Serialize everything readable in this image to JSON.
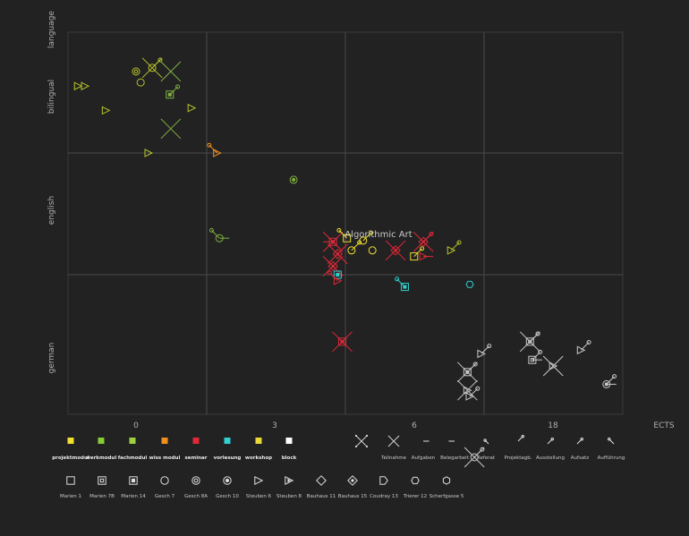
{
  "chart_data": {
    "type": "scatter",
    "title": "",
    "xlabel": "ECTS",
    "ylabel": "language",
    "x_ticks": [
      "0",
      "3",
      "6",
      "18"
    ],
    "y_categories": [
      "german",
      "english",
      "bilingual"
    ],
    "grid": true,
    "annotation": "Algorithmic Art",
    "colors": {
      "projektmodul": "#f0e030",
      "werkmodul": "#88cc33",
      "fachmodul": "#a0d040",
      "wiss_modul": "#f09020",
      "seminar": "#e02838",
      "vorlesung": "#30d0d0",
      "workshop": "#e8d838",
      "block": "#ffffff",
      "olive": "#b8c428",
      "green": "#7fb040",
      "grey": "#c8c8c8"
    },
    "points": [
      {
        "x": -1.25,
        "y": 2.55,
        "shape": "steuben6",
        "color": "olive"
      },
      {
        "x": -1.1,
        "y": 2.55,
        "shape": "steuben6",
        "color": "olive"
      },
      {
        "x": -0.65,
        "y": 2.35,
        "shape": "steuben6",
        "color": "olive"
      },
      {
        "x": 0.0,
        "y": 2.67,
        "shape": "gesch8a",
        "color": "olive"
      },
      {
        "x": 0.1,
        "y": 2.58,
        "shape": "gesch7",
        "color": "olive"
      },
      {
        "x": 0.35,
        "y": 2.7,
        "shape": "gesch7",
        "color": "olive",
        "marks": [
          "teilnahme",
          "ausstellung"
        ]
      },
      {
        "x": 0.75,
        "y": 2.67,
        "shape": "none",
        "color": "green",
        "marks": [
          "teilnahme"
        ]
      },
      {
        "x": 0.73,
        "y": 2.48,
        "shape": "marien14",
        "color": "green",
        "marks": [
          "aufsatz"
        ]
      },
      {
        "x": 1.2,
        "y": 2.37,
        "shape": "steuben6",
        "color": "olive"
      },
      {
        "x": 0.75,
        "y": 2.2,
        "shape": "none",
        "color": "green",
        "marks": [
          "teilnahme"
        ]
      },
      {
        "x": 0.27,
        "y": 2.0,
        "shape": "steuben6",
        "color": "olive"
      },
      {
        "x": 1.75,
        "y": 2.0,
        "shape": "steuben6",
        "color": "wiss_modul",
        "marks": [
          "auffuehrung"
        ]
      },
      {
        "x": 3.4,
        "y": 1.78,
        "shape": "gesch10",
        "color": "green"
      },
      {
        "x": 1.8,
        "y": 1.3,
        "shape": "gesch7",
        "color": "green",
        "marks": [
          "auffuehrung",
          "aufgaben"
        ]
      },
      {
        "x": 4.25,
        "y": 1.27,
        "shape": "marien14",
        "color": "seminar",
        "marks": [
          "teilnahme",
          "belegarbeit"
        ]
      },
      {
        "x": 4.55,
        "y": 1.3,
        "shape": "marien1",
        "color": "projektmodul",
        "marks": [
          "auffuehrung"
        ]
      },
      {
        "x": 4.65,
        "y": 1.2,
        "shape": "gesch7",
        "color": "projektmodul",
        "marks": [
          "ausstellung"
        ]
      },
      {
        "x": 4.9,
        "y": 1.28,
        "shape": "gesch7",
        "color": "projektmodul",
        "marks": [
          "projektagb"
        ]
      },
      {
        "x": 5.1,
        "y": 1.2,
        "shape": "gesch7",
        "color": "projektmodul"
      },
      {
        "x": 4.35,
        "y": 1.17,
        "shape": "bauhaus15",
        "color": "seminar",
        "marks": [
          "teilnahme"
        ]
      },
      {
        "x": 4.25,
        "y": 1.07,
        "shape": "bauhaus15",
        "color": "seminar",
        "marks": [
          "teilnahme"
        ]
      },
      {
        "x": 4.35,
        "y": 1.0,
        "shape": "marien14",
        "color": "vorlesung"
      },
      {
        "x": 4.35,
        "y": 0.95,
        "shape": "steuben6",
        "color": "seminar",
        "marks": [
          "auffuehrung"
        ]
      },
      {
        "x": 5.6,
        "y": 1.2,
        "shape": "bauhaus15",
        "color": "seminar",
        "marks": [
          "teilnahme"
        ]
      },
      {
        "x": 6.0,
        "y": 1.15,
        "shape": "marien1",
        "color": "workshop",
        "marks": [
          "ausstellung"
        ]
      },
      {
        "x": 6.2,
        "y": 1.27,
        "shape": "bauhaus15",
        "color": "seminar",
        "marks": [
          "ausstellung",
          "teilnahme"
        ]
      },
      {
        "x": 6.2,
        "y": 1.15,
        "shape": "steuben6",
        "color": "seminar",
        "marks": [
          "aufgaben"
        ]
      },
      {
        "x": 6.8,
        "y": 1.2,
        "shape": "steuben6",
        "color": "olive",
        "marks": [
          "ausstellung"
        ]
      },
      {
        "x": 5.8,
        "y": 0.9,
        "shape": "marien14",
        "color": "vorlesung",
        "marks": [
          "auffuehrung"
        ]
      },
      {
        "x": 7.2,
        "y": 0.92,
        "shape": "trierer12",
        "color": "vorlesung"
      },
      {
        "x": 4.45,
        "y": 0.45,
        "shape": "marien14",
        "color": "seminar",
        "marks": [
          "teilnahme"
        ]
      },
      {
        "x": 7.15,
        "y": 0.2,
        "shape": "marien14",
        "color": "grey",
        "marks": [
          "teilnahme",
          "ausstellung"
        ]
      },
      {
        "x": 7.15,
        "y": 0.05,
        "shape": "steuben6",
        "color": "grey",
        "marks": [
          "teilnahme"
        ]
      },
      {
        "x": 7.45,
        "y": 0.35,
        "shape": "steuben6",
        "color": "grey",
        "marks": [
          "ausstellung"
        ]
      },
      {
        "x": 7.2,
        "y": 0.0,
        "shape": "steuben6",
        "color": "grey",
        "marks": [
          "projektagb"
        ]
      },
      {
        "x": 8.5,
        "y": 0.45,
        "shape": "marien70",
        "color": "grey",
        "marks": [
          "teilnahme",
          "ausstellung",
          "aufsatz"
        ]
      },
      {
        "x": 8.55,
        "y": 0.3,
        "shape": "marien70",
        "color": "grey",
        "marks": [
          "aufgaben",
          "ausstellung"
        ]
      },
      {
        "x": 9.0,
        "y": 0.25,
        "shape": "steuben6",
        "color": "grey",
        "marks": [
          "teilnahme"
        ]
      },
      {
        "x": 9.6,
        "y": 0.38,
        "shape": "steuben6",
        "color": "grey",
        "marks": [
          "ausstellung"
        ]
      },
      {
        "x": 10.15,
        "y": 0.1,
        "shape": "gesch10",
        "color": "grey",
        "marks": [
          "aufgaben",
          "ausstellung"
        ]
      },
      {
        "x": 7.3,
        "y": -0.5,
        "shape": "gesch7",
        "color": "grey",
        "marks": [
          "teilnahme",
          "ausstellung"
        ]
      }
    ]
  },
  "legend": {
    "colors": [
      {
        "key": "projektmodul",
        "label": "projektmodul"
      },
      {
        "key": "werkmodul",
        "label": "werkmodul"
      },
      {
        "key": "fachmodul",
        "label": "fachmodul"
      },
      {
        "key": "wiss_modul",
        "label": "wiss modul"
      },
      {
        "key": "seminar",
        "label": "seminar"
      },
      {
        "key": "vorlesung",
        "label": "vorlesung"
      },
      {
        "key": "workshop",
        "label": "workshop"
      },
      {
        "key": "block",
        "label": "block"
      }
    ],
    "marks": [
      {
        "key": "teilnahme_all",
        "label": ""
      },
      {
        "key": "teilnahme",
        "label": "Teilnahme"
      },
      {
        "key": "aufgaben",
        "label": "Aufgaben"
      },
      {
        "key": "belegarbeit",
        "label": "Belegarbeit"
      },
      {
        "key": "referat",
        "label": "Referat"
      },
      {
        "key": "projektagb",
        "label": "Projektagb."
      },
      {
        "key": "ausstellung",
        "label": "Ausstellung"
      },
      {
        "key": "aufsatz",
        "label": "Aufsatz"
      },
      {
        "key": "auffuehrung",
        "label": "Aufführung"
      }
    ],
    "shapes": [
      {
        "key": "marien1",
        "label": "Marien 1"
      },
      {
        "key": "marien70",
        "label": "Marien 7B"
      },
      {
        "key": "marien14",
        "label": "Marien 14"
      },
      {
        "key": "gesch7",
        "label": "Gesch 7"
      },
      {
        "key": "gesch8a",
        "label": "Gesch 8A"
      },
      {
        "key": "gesch10",
        "label": "Gesch 10"
      },
      {
        "key": "steuben6",
        "label": "Steuben 6"
      },
      {
        "key": "steuben8",
        "label": "Steuben 8"
      },
      {
        "key": "bauhaus11",
        "label": "Bauhaus 11"
      },
      {
        "key": "bauhaus15",
        "label": "Bauhaus 15"
      },
      {
        "key": "coudray13",
        "label": "Coudray 13"
      },
      {
        "key": "trierer12",
        "label": "Trierer 12"
      },
      {
        "key": "scherfgasse5",
        "label": "Scherfgasse 5"
      }
    ]
  }
}
